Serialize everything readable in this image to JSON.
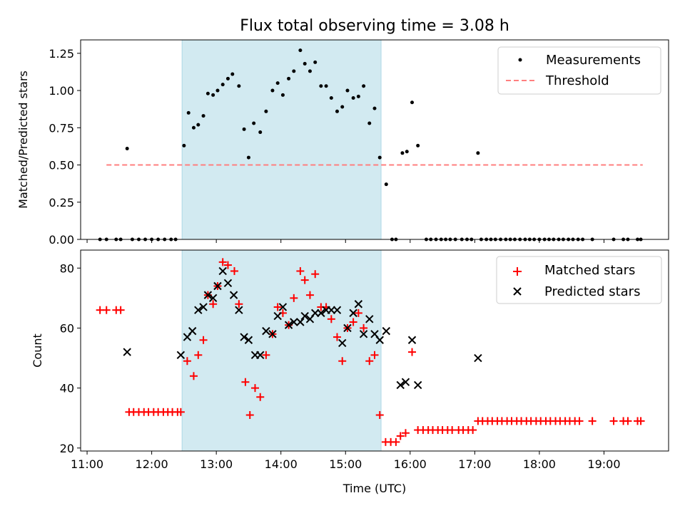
{
  "chart_data": [
    {
      "type": "scatter",
      "title": "Flux total observing time = 3.08 h",
      "xlabel": "",
      "ylabel": "Matched/Predicted stars",
      "xlim": [
        10.9,
        20.0
      ],
      "ylim": [
        0,
        1.34
      ],
      "yticks": [
        0,
        0.25,
        0.5,
        0.75,
        1.0,
        1.25
      ],
      "ytick_labels": [
        "0.00",
        "0.25",
        "0.50",
        "0.75",
        "1.00",
        "1.25"
      ],
      "shaded_x": [
        12.47,
        15.55
      ],
      "shade_color": "#add8e6",
      "legend_position": "top-right",
      "series": [
        {
          "name": "Measurements",
          "kind": "points",
          "color": "#000000",
          "x": [
            11.2,
            11.3,
            11.45,
            11.52,
            11.8,
            11.9,
            12.0,
            12.1,
            12.2,
            12.3,
            12.37,
            11.62,
            11.7,
            12.5,
            12.57,
            12.65,
            12.72,
            12.8,
            12.87,
            12.95,
            13.02,
            13.1,
            13.18,
            13.25,
            13.35,
            13.43,
            13.5,
            13.58,
            13.68,
            13.77,
            13.87,
            13.95,
            14.03,
            14.12,
            14.2,
            14.3,
            14.37,
            14.45,
            14.53,
            14.62,
            14.7,
            14.78,
            14.87,
            14.95,
            15.03,
            15.12,
            15.2,
            15.28,
            15.37,
            15.45,
            15.53,
            15.63,
            15.72,
            15.78,
            15.88,
            15.95,
            16.03,
            16.12,
            16.25,
            16.32,
            16.4,
            16.48,
            16.55,
            16.62,
            16.7,
            16.8,
            16.88,
            16.95,
            17.05,
            17.1,
            17.18,
            17.25,
            17.32,
            17.4,
            17.48,
            17.55,
            17.62,
            17.7,
            17.78,
            17.85,
            17.92,
            18.0,
            18.08,
            18.15,
            18.22,
            18.3,
            18.37,
            18.45,
            18.52,
            18.6,
            18.67,
            18.82,
            19.15,
            19.3,
            19.37,
            19.52,
            19.57
          ],
          "y": [
            0,
            0,
            0,
            0,
            0,
            0,
            0,
            0,
            0,
            0,
            0,
            0.61,
            0,
            0.63,
            0.85,
            0.75,
            0.77,
            0.83,
            0.98,
            0.97,
            1.0,
            1.04,
            1.08,
            1.11,
            1.03,
            0.74,
            0.55,
            0.78,
            0.72,
            0.86,
            1.0,
            1.05,
            0.97,
            1.08,
            1.13,
            1.27,
            1.18,
            1.13,
            1.19,
            1.03,
            1.03,
            0.95,
            0.86,
            0.89,
            1.0,
            0.95,
            0.96,
            1.03,
            0.78,
            0.88,
            0.55,
            0.37,
            0,
            0,
            0.58,
            0.59,
            0.92,
            0.63,
            0,
            0,
            0,
            0,
            0,
            0,
            0,
            0,
            0,
            0,
            0.58,
            0,
            0,
            0,
            0,
            0,
            0,
            0,
            0,
            0,
            0,
            0,
            0,
            0,
            0,
            0,
            0,
            0,
            0,
            0,
            0,
            0,
            0,
            0,
            0,
            0,
            0,
            0,
            0
          ]
        },
        {
          "name": "Threshold",
          "kind": "dashed-line",
          "color": "#ff7f7f",
          "x": [
            11.3,
            19.6
          ],
          "y": [
            0.5,
            0.5
          ]
        }
      ]
    },
    {
      "type": "scatter",
      "title": "",
      "xlabel": "Time (UTC)",
      "ylabel": "Count",
      "xlim": [
        10.9,
        20.0
      ],
      "ylim": [
        19,
        86
      ],
      "yticks": [
        20,
        40,
        60,
        80
      ],
      "ytick_labels": [
        "20",
        "40",
        "60",
        "80"
      ],
      "xticks": [
        11,
        12,
        13,
        14,
        15,
        16,
        17,
        18,
        19
      ],
      "xtick_labels": [
        "11:00",
        "12:00",
        "13:00",
        "14:00",
        "15:00",
        "16:00",
        "17:00",
        "18:00",
        "19:00"
      ],
      "shaded_x": [
        12.47,
        15.55
      ],
      "shade_color": "#add8e6",
      "legend_position": "top-right",
      "series": [
        {
          "name": "Matched stars",
          "kind": "plus",
          "color": "#ff0000",
          "x": [
            11.2,
            11.3,
            11.45,
            11.52,
            11.65,
            11.72,
            11.8,
            11.88,
            11.95,
            12.03,
            12.1,
            12.18,
            12.25,
            12.32,
            12.4,
            12.45,
            12.55,
            12.65,
            12.72,
            12.8,
            12.87,
            12.95,
            13.02,
            13.1,
            13.18,
            13.28,
            13.35,
            13.45,
            13.52,
            13.6,
            13.68,
            13.77,
            13.87,
            13.95,
            14.03,
            14.12,
            14.2,
            14.3,
            14.37,
            14.45,
            14.53,
            14.62,
            14.7,
            14.78,
            14.87,
            14.95,
            15.03,
            15.12,
            15.2,
            15.28,
            15.37,
            15.45,
            15.53,
            15.62,
            15.7,
            15.78,
            15.85,
            15.93,
            16.03,
            16.12,
            16.2,
            16.28,
            16.35,
            16.43,
            16.5,
            16.58,
            16.65,
            16.75,
            16.82,
            16.9,
            16.97,
            17.05,
            17.12,
            17.2,
            17.27,
            17.35,
            17.42,
            17.5,
            17.57,
            17.65,
            17.72,
            17.8,
            17.87,
            17.95,
            18.02,
            18.1,
            18.17,
            18.25,
            18.32,
            18.4,
            18.47,
            18.55,
            18.62,
            18.82,
            19.15,
            19.3,
            19.37,
            19.52,
            19.57
          ],
          "y": [
            66,
            66,
            66,
            66,
            32,
            32,
            32,
            32,
            32,
            32,
            32,
            32,
            32,
            32,
            32,
            32,
            49,
            44,
            51,
            56,
            71,
            68,
            74,
            82,
            81,
            79,
            68,
            42,
            31,
            40,
            37,
            51,
            58,
            67,
            65,
            61,
            70,
            79,
            76,
            71,
            78,
            67,
            67,
            63,
            57,
            49,
            60,
            62,
            65,
            60,
            49,
            51,
            31,
            22,
            22,
            22,
            24,
            25,
            52,
            26,
            26,
            26,
            26,
            26,
            26,
            26,
            26,
            26,
            26,
            26,
            26,
            29,
            29,
            29,
            29,
            29,
            29,
            29,
            29,
            29,
            29,
            29,
            29,
            29,
            29,
            29,
            29,
            29,
            29,
            29,
            29,
            29,
            29,
            29,
            29,
            29,
            29,
            29,
            29
          ]
        },
        {
          "name": "Predicted stars",
          "kind": "cross",
          "color": "#000000",
          "x": [
            11.62,
            12.45,
            12.55,
            12.63,
            12.72,
            12.8,
            12.87,
            12.95,
            13.02,
            13.1,
            13.18,
            13.27,
            13.35,
            13.43,
            13.5,
            13.6,
            13.68,
            13.77,
            13.87,
            13.95,
            14.03,
            14.12,
            14.2,
            14.3,
            14.37,
            14.45,
            14.53,
            14.62,
            14.7,
            14.78,
            14.87,
            14.95,
            15.03,
            15.12,
            15.2,
            15.28,
            15.37,
            15.45,
            15.53,
            15.63,
            15.85,
            15.93,
            16.03,
            16.12,
            17.05
          ],
          "y": [
            52,
            51,
            57,
            59,
            66,
            67,
            71,
            70,
            74,
            79,
            75,
            71,
            66,
            57,
            56,
            51,
            51,
            59,
            58,
            64,
            67,
            61,
            62,
            62,
            64,
            63,
            65,
            65,
            66,
            66,
            66,
            55,
            60,
            65,
            68,
            58,
            63,
            58,
            56,
            59,
            41,
            42,
            56,
            41,
            50
          ]
        }
      ]
    }
  ]
}
